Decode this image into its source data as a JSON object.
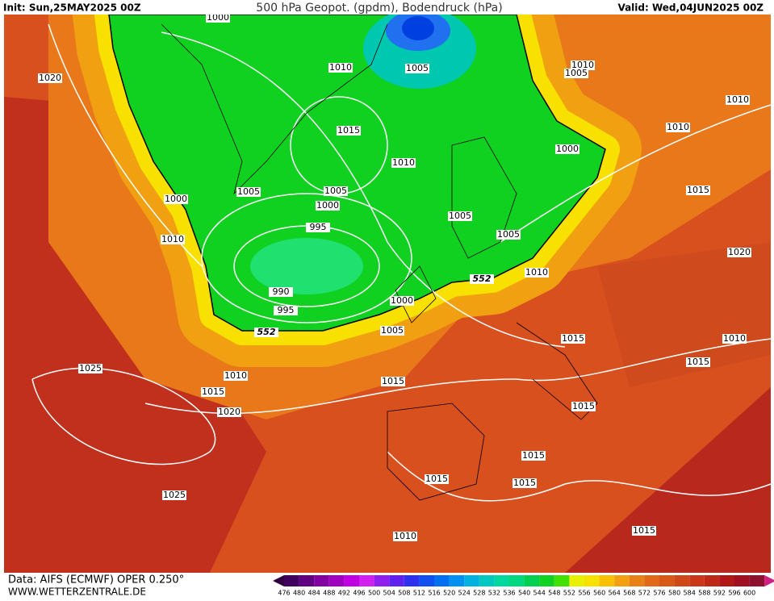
{
  "header": {
    "init": "Init: Sun,25MAY2025 00Z",
    "title": "500 hPa Geopot. (gpdm), Bodendruck (hPa)",
    "valid": "Valid: Wed,04JUN2025 00Z"
  },
  "isobar_labels": [
    "1000",
    "1020",
    "1010",
    "1005",
    "1010",
    "1005",
    "1015",
    "1010",
    "1010",
    "1000",
    "1010",
    "1000",
    "1005",
    "1005",
    "1000",
    "1015",
    "1005",
    "995",
    "1010",
    "1005",
    "1020",
    "552",
    "1010",
    "990",
    "995",
    "1000",
    "552",
    "1005",
    "1015",
    "1010",
    "1015",
    "1025",
    "1010",
    "1015",
    "1015",
    "1015",
    "1020",
    "1015",
    "1015",
    "1015",
    "1025",
    "1010",
    "1015"
  ],
  "colorbar": {
    "labels": [
      476,
      480,
      484,
      488,
      492,
      496,
      500,
      504,
      508,
      512,
      516,
      520,
      524,
      528,
      532,
      536,
      540,
      544,
      548,
      552,
      556,
      560,
      564,
      568,
      572,
      576,
      580,
      584,
      588,
      592,
      596,
      600
    ]
  },
  "footer": {
    "data": "Data: AIFS (ECMWF) OPER 0.250°",
    "url": "WWW.WETTERZENTRALE.DE"
  }
}
